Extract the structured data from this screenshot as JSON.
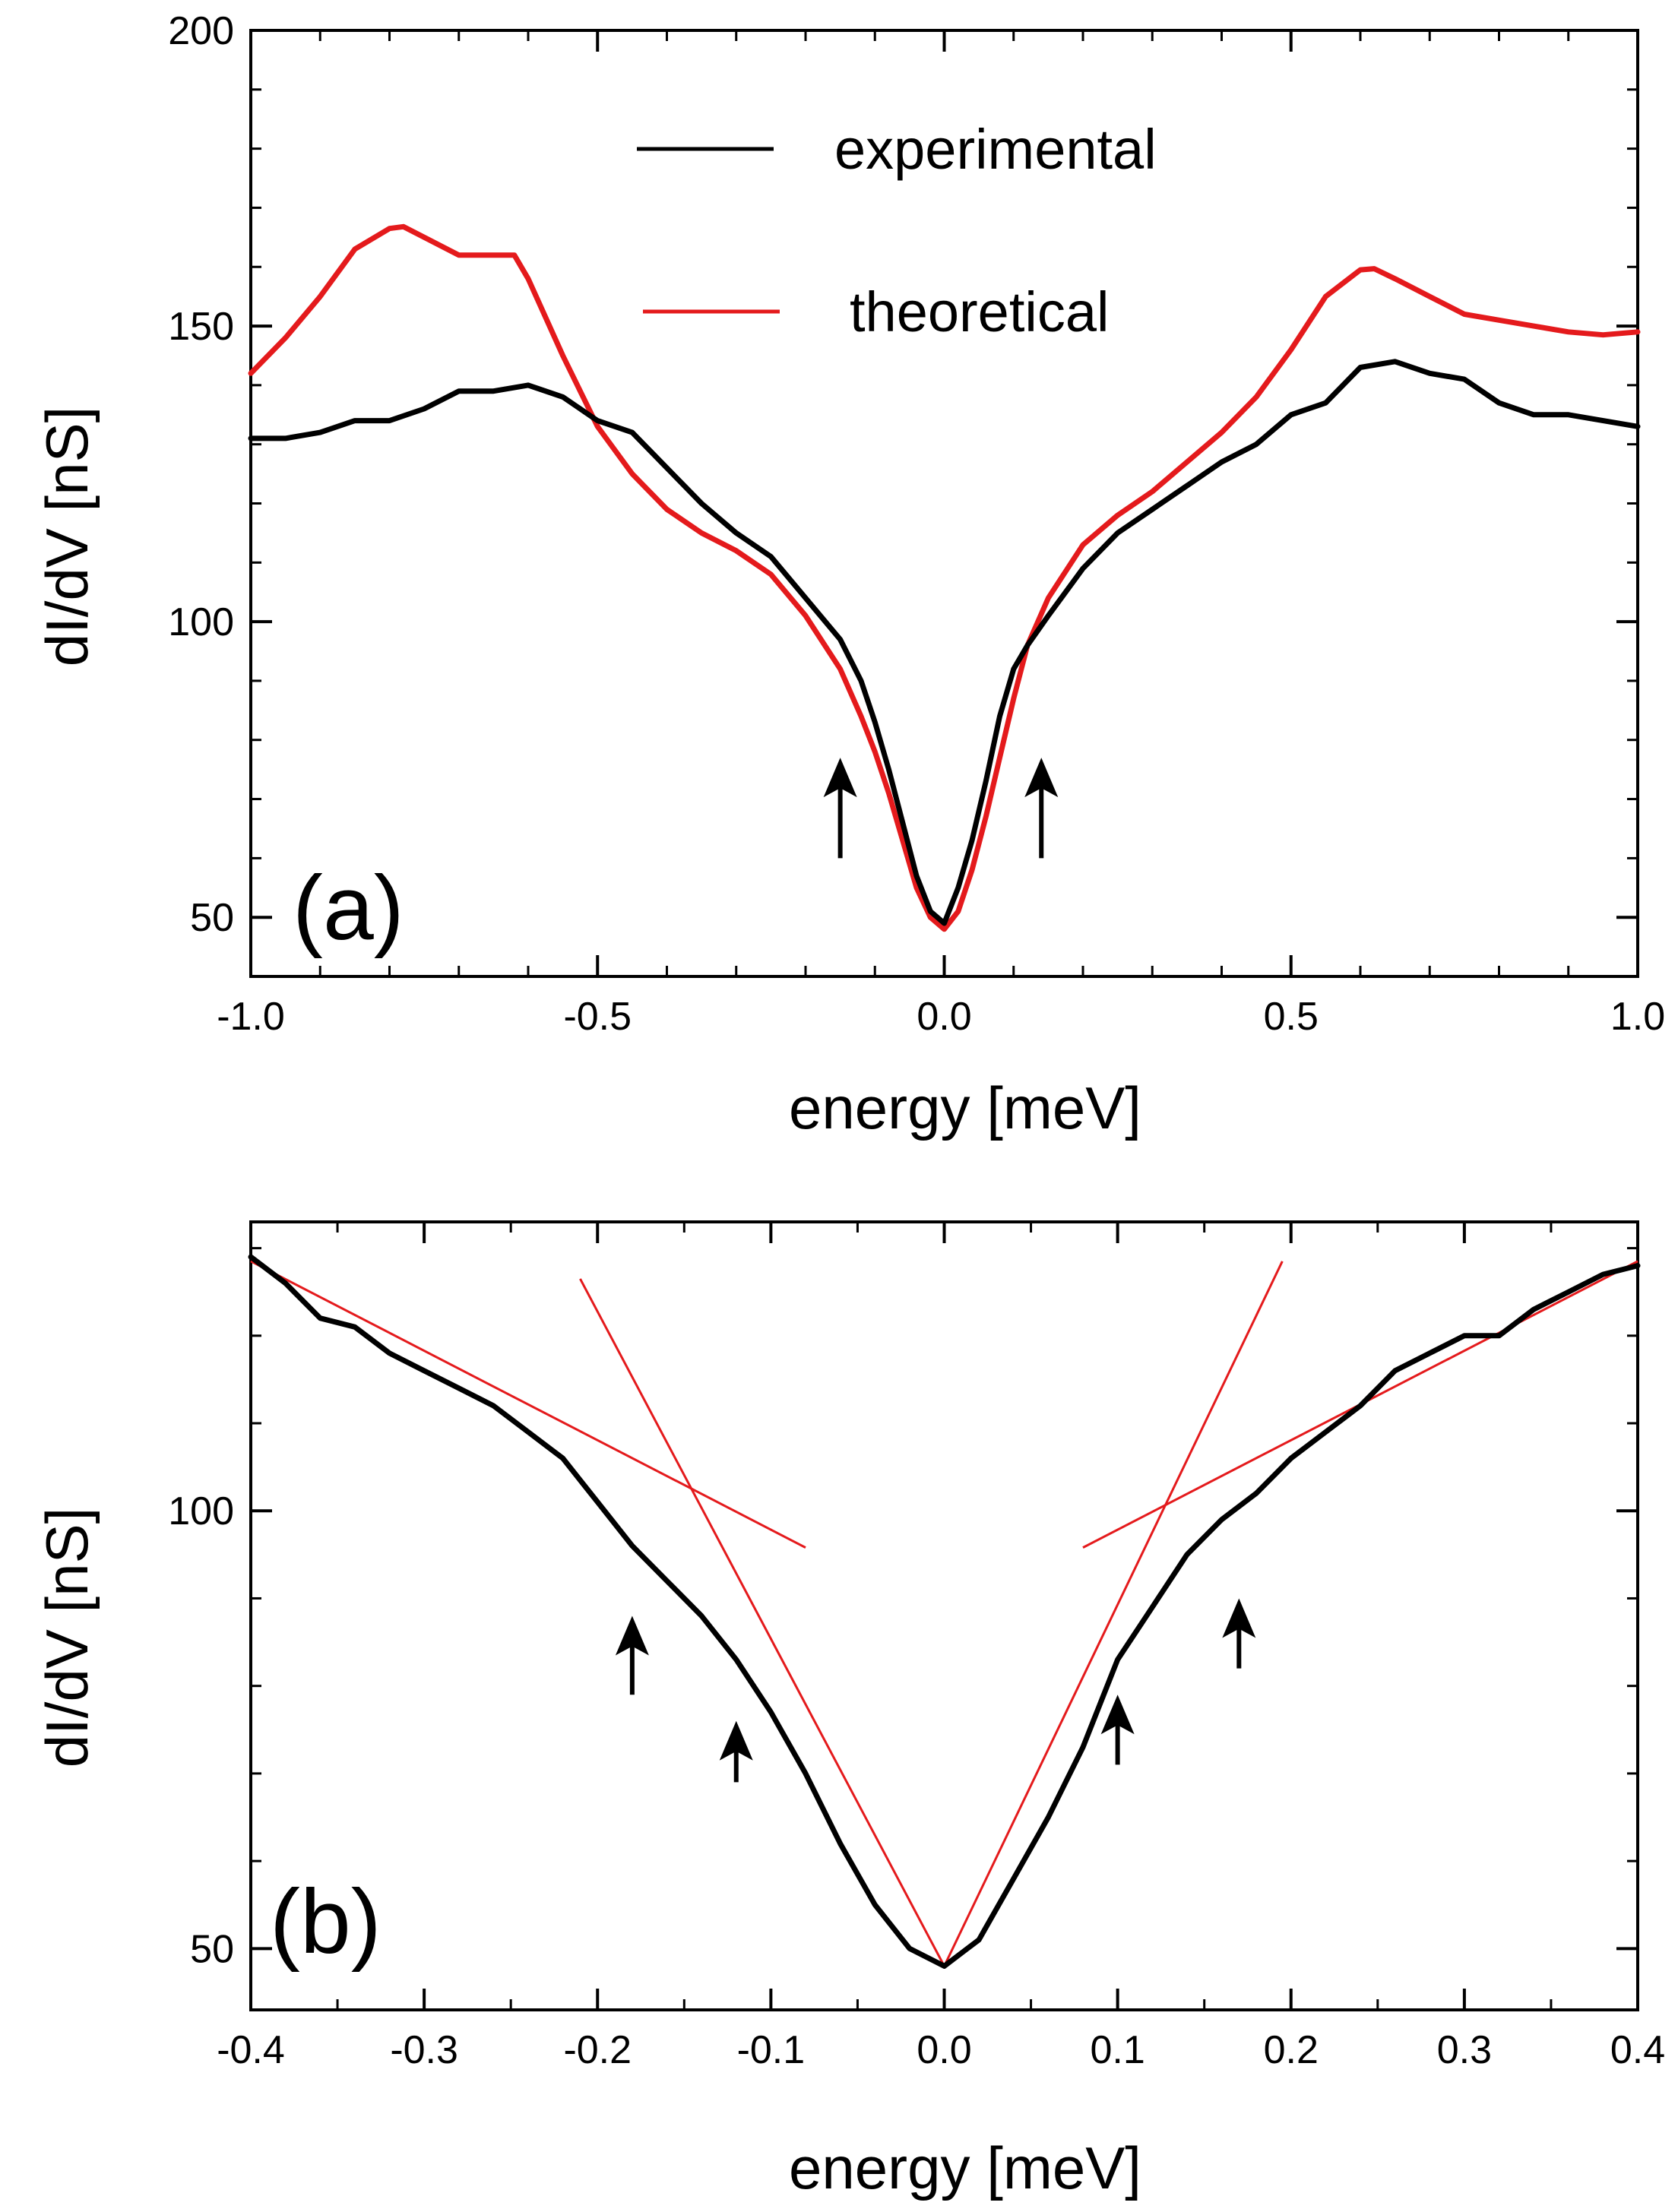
{
  "colors": {
    "experimental": "#000000",
    "theoretical": "#e41a1c",
    "axes": "#000000"
  },
  "chart_data": [
    {
      "panel": "(a)",
      "type": "line",
      "xlabel": "energy [meV]",
      "ylabel": "dI/dV [nS]",
      "xlim": [
        -1.0,
        1.0
      ],
      "ylim": [
        40,
        200
      ],
      "xticks": [
        -1.0,
        -0.5,
        0.0,
        0.5,
        1.0
      ],
      "xtick_labels": [
        "-1.0",
        "-0.5",
        "0.0",
        "0.5",
        "1.0"
      ],
      "yticks": [
        50,
        100,
        150,
        200
      ],
      "ytick_labels": [
        "50",
        "100",
        "150",
        "200"
      ],
      "legend": {
        "position": "top-center",
        "entries": [
          "experimental",
          "theoretical"
        ]
      },
      "series": [
        {
          "name": "experimental",
          "color": "#000000",
          "x": [
            -1.0,
            -0.95,
            -0.9,
            -0.85,
            -0.8,
            -0.75,
            -0.7,
            -0.65,
            -0.6,
            -0.55,
            -0.5,
            -0.45,
            -0.4,
            -0.35,
            -0.3,
            -0.25,
            -0.2,
            -0.15,
            -0.12,
            -0.1,
            -0.08,
            -0.06,
            -0.04,
            -0.02,
            0.0,
            0.02,
            0.04,
            0.06,
            0.08,
            0.1,
            0.12,
            0.15,
            0.2,
            0.25,
            0.3,
            0.35,
            0.4,
            0.45,
            0.5,
            0.55,
            0.6,
            0.65,
            0.7,
            0.75,
            0.8,
            0.85,
            0.9,
            0.95,
            1.0
          ],
          "y": [
            131,
            131,
            132,
            134,
            134,
            136,
            139,
            139,
            140,
            138,
            134,
            132,
            126,
            120,
            115,
            111,
            104,
            97,
            90,
            83,
            75,
            66,
            57,
            51,
            49,
            55,
            63,
            73,
            84,
            92,
            96,
            101,
            109,
            115,
            119,
            123,
            127,
            130,
            135,
            137,
            143,
            144,
            142,
            141,
            137,
            135,
            135,
            134,
            133
          ]
        },
        {
          "name": "theoretical",
          "color": "#e41a1c",
          "x": [
            -1.0,
            -0.95,
            -0.9,
            -0.85,
            -0.8,
            -0.78,
            -0.75,
            -0.7,
            -0.65,
            -0.62,
            -0.6,
            -0.55,
            -0.5,
            -0.45,
            -0.4,
            -0.35,
            -0.3,
            -0.25,
            -0.2,
            -0.15,
            -0.12,
            -0.1,
            -0.08,
            -0.06,
            -0.04,
            -0.02,
            0.0,
            0.02,
            0.04,
            0.06,
            0.08,
            0.1,
            0.12,
            0.15,
            0.2,
            0.25,
            0.3,
            0.35,
            0.4,
            0.45,
            0.5,
            0.55,
            0.6,
            0.62,
            0.65,
            0.7,
            0.75,
            0.8,
            0.85,
            0.9,
            0.95,
            1.0
          ],
          "y": [
            142,
            148,
            155,
            163,
            166.5,
            166.8,
            165,
            162,
            162,
            162,
            158,
            145,
            133,
            125,
            119,
            115,
            112,
            108,
            101,
            92,
            84,
            78,
            71,
            63,
            55,
            50,
            48,
            51,
            58,
            67,
            77,
            87,
            96,
            104,
            113,
            118,
            122,
            127,
            132,
            138,
            146,
            155,
            159.5,
            159.7,
            158,
            155,
            152,
            151,
            150,
            149,
            148.5,
            149
          ]
        }
      ],
      "annotations": [
        {
          "type": "arrow",
          "x": -0.15,
          "y_from": 60,
          "y_to": 77
        },
        {
          "type": "arrow",
          "x": 0.14,
          "y_from": 60,
          "y_to": 77
        }
      ]
    },
    {
      "panel": "(b)",
      "type": "line",
      "xlabel": "energy [meV]",
      "ylabel": "dI/dV [nS]",
      "xlim": [
        -0.4,
        0.4
      ],
      "ylim": [
        43,
        133
      ],
      "xticks": [
        -0.4,
        -0.3,
        -0.2,
        -0.1,
        0.0,
        0.1,
        0.2,
        0.3,
        0.4
      ],
      "xtick_labels": [
        "-0.4",
        "-0.3",
        "-0.2",
        "-0.1",
        "0.0",
        "0.1",
        "0.2",
        "0.3",
        "0.4"
      ],
      "yticks": [
        50,
        100
      ],
      "ytick_labels": [
        "50",
        "100"
      ],
      "series": [
        {
          "name": "experimental",
          "color": "#000000",
          "x": [
            -0.4,
            -0.38,
            -0.36,
            -0.34,
            -0.32,
            -0.3,
            -0.28,
            -0.26,
            -0.24,
            -0.22,
            -0.2,
            -0.18,
            -0.16,
            -0.14,
            -0.12,
            -0.1,
            -0.08,
            -0.06,
            -0.04,
            -0.02,
            0.0,
            0.02,
            0.04,
            0.06,
            0.08,
            0.1,
            0.12,
            0.14,
            0.16,
            0.18,
            0.2,
            0.22,
            0.24,
            0.26,
            0.28,
            0.3,
            0.32,
            0.34,
            0.36,
            0.38,
            0.4
          ],
          "y": [
            129,
            126,
            122,
            121,
            118,
            116,
            114,
            112,
            109,
            106,
            101,
            96,
            92,
            88,
            83,
            77,
            70,
            62,
            55,
            50,
            48,
            51,
            58,
            65,
            73,
            83,
            89,
            95,
            99,
            102,
            106,
            109,
            112,
            116,
            118,
            120,
            120,
            123,
            125,
            127,
            128
          ]
        }
      ],
      "fit_lines": [
        {
          "color": "#e41a1c",
          "x": [
            -0.4,
            -0.08
          ],
          "y": [
            128.5,
            95.8
          ]
        },
        {
          "color": "#e41a1c",
          "x": [
            -0.21,
            0.0
          ],
          "y": [
            126.5,
            48.0
          ]
        },
        {
          "color": "#e41a1c",
          "x": [
            0.0,
            0.195
          ],
          "y": [
            48.0,
            128.5
          ]
        },
        {
          "color": "#e41a1c",
          "x": [
            0.08,
            0.4
          ],
          "y": [
            95.8,
            128.5
          ]
        }
      ],
      "annotations": [
        {
          "type": "arrow",
          "x": -0.18,
          "y_from": 79,
          "y_to": 88
        },
        {
          "type": "arrow",
          "x": -0.12,
          "y_from": 69,
          "y_to": 76
        },
        {
          "type": "arrow",
          "x": 0.1,
          "y_from": 71,
          "y_to": 79
        },
        {
          "type": "arrow",
          "x": 0.17,
          "y_from": 82,
          "y_to": 90
        }
      ]
    }
  ]
}
